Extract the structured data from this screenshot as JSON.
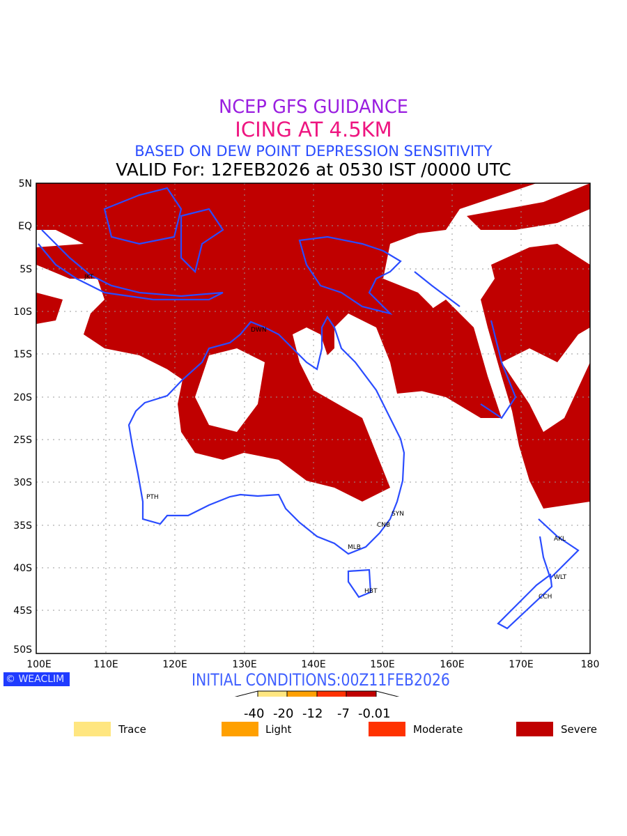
{
  "titles": {
    "line1": "NCEP GFS GUIDANCE",
    "line2": "ICING AT 4.5KM",
    "line3": "BASED ON DEW POINT DEPRESSION SENSITIVITY",
    "line4": "VALID For: 12FEB2026 at 0530 IST /0000 UTC"
  },
  "axes": {
    "lat": [
      "5N",
      "EQ",
      "5S",
      "10S",
      "15S",
      "20S",
      "25S",
      "30S",
      "35S",
      "40S",
      "45S",
      "50S"
    ],
    "lon": [
      "100E",
      "110E",
      "120E",
      "130E",
      "140E",
      "150E",
      "160E",
      "170E",
      "180"
    ]
  },
  "cities": [
    {
      "name": "JKT"
    },
    {
      "name": "DWN"
    },
    {
      "name": "PTH"
    },
    {
      "name": "SYN"
    },
    {
      "name": "CNB"
    },
    {
      "name": "MLB"
    },
    {
      "name": "HBT"
    },
    {
      "name": "AKL"
    },
    {
      "name": "WLT"
    },
    {
      "name": "CCH"
    }
  ],
  "footer": {
    "logo": "WEACLIM",
    "initial": "INITIAL CONDITIONS:00Z11FEB2026"
  },
  "colorbar": {
    "ticks": [
      "-40",
      "-20",
      "-12",
      "-7",
      "-0.01"
    ],
    "colors": [
      "#ffe680",
      "#ffa000",
      "#ff3200",
      "#c00000"
    ]
  },
  "legend": [
    {
      "label": "Trace",
      "color": "#ffe680"
    },
    {
      "label": "Light",
      "color": "#ffa000"
    },
    {
      "label": "Moderate",
      "color": "#ff3200"
    },
    {
      "label": "Severe",
      "color": "#c00000"
    }
  ],
  "colors": {
    "coast": "#2a4cff",
    "severe": "#c00000"
  }
}
